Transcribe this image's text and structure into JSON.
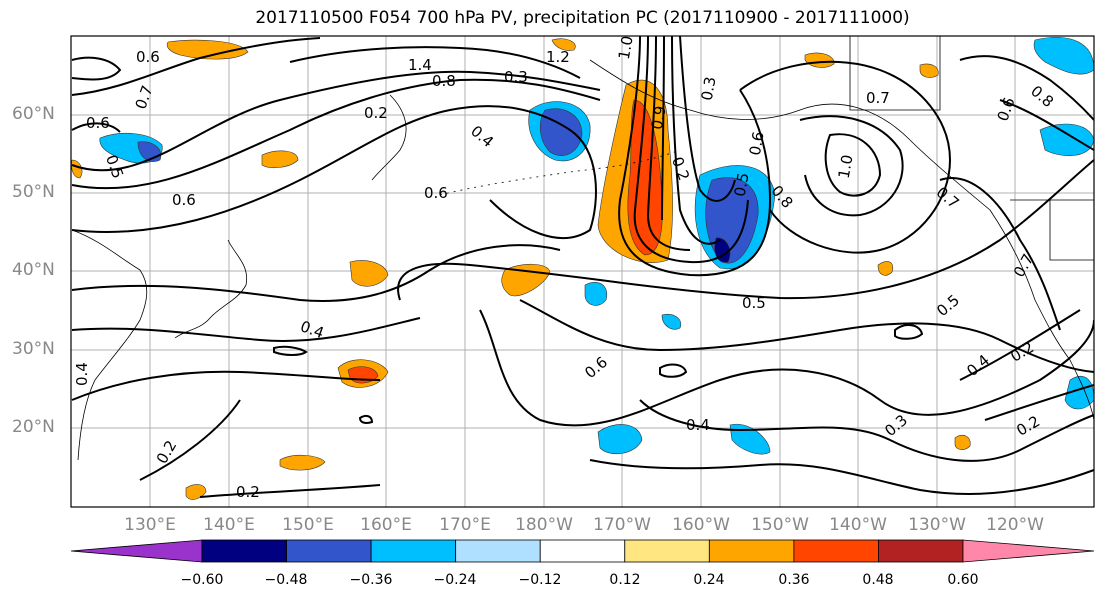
{
  "title": "2017110500 F054 700 hPa PV, precipitation PC (2017110900 - 2017111000)",
  "latitude_labels": [
    "60°N",
    "50°N",
    "40°N",
    "30°N",
    "20°N"
  ],
  "longitude_labels": [
    "130°E",
    "140°E",
    "150°E",
    "160°E",
    "170°E",
    "180°W",
    "170°W",
    "160°W",
    "150°W",
    "140°W",
    "130°W",
    "120°W"
  ],
  "contour_labels": [
    "0.6",
    "0.7",
    "0.6",
    "0.5",
    "0.6",
    "1.4",
    "0.8",
    "0.3",
    "1.2",
    "1.0",
    "0.2",
    "0.4",
    "0.6",
    "0.9",
    "0.2",
    "0.3",
    "0.5",
    "0.6",
    "0.8",
    "1.0",
    "0.7",
    "0.6",
    "0.8",
    "0.7",
    "0.7",
    "0.5",
    "0.5",
    "0.4",
    "0.6",
    "0.4",
    "0.3",
    "0.4",
    "0.2",
    "0.2",
    "0.2",
    "0.2",
    "0.4"
  ],
  "colorbar": {
    "ticks": [
      "−0.60",
      "−0.48",
      "−0.36",
      "−0.24",
      "−0.12",
      "0.12",
      "0.24",
      "0.36",
      "0.48",
      "0.60"
    ],
    "colors": [
      "#9933cc",
      "#000080",
      "#3355cc",
      "#00bfff",
      "#b0e0ff",
      "#ffffff",
      "#ffe680",
      "#ffa500",
      "#ff4500",
      "#b22222",
      "#ff88aa"
    ]
  }
}
